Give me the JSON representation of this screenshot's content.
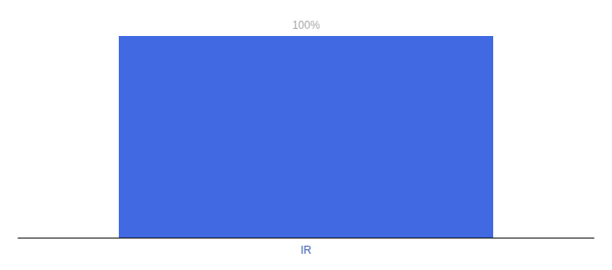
{
  "chart_data": {
    "type": "bar",
    "categories": [
      "IR"
    ],
    "values": [
      100
    ],
    "value_labels": [
      "100%"
    ],
    "color": "#4169E1",
    "ylim": [
      0,
      100
    ],
    "grid": false,
    "data_labels": true,
    "tick_labels": "x"
  }
}
